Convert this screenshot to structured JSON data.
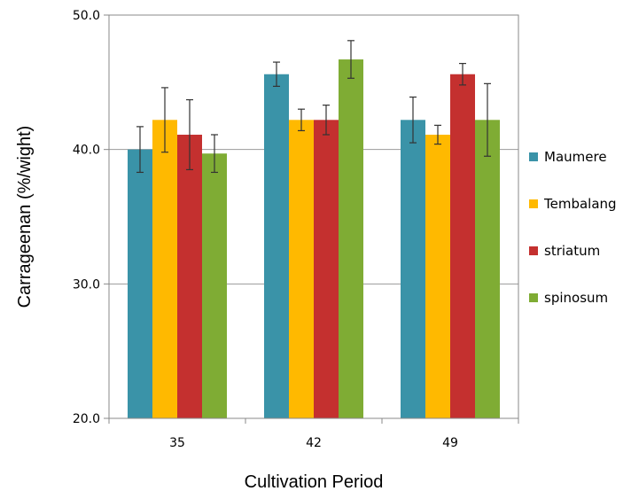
{
  "chart_data": {
    "type": "bar",
    "title": "",
    "xlabel": "Cultivation Period",
    "ylabel": "Carrageenan (%/wight)",
    "categories": [
      "35",
      "42",
      "49"
    ],
    "ylim": [
      20.0,
      50.0
    ],
    "yticks": [
      "20.0",
      "30.0",
      "40.0",
      "50.0"
    ],
    "grid": true,
    "legend_position": "right",
    "series": [
      {
        "name": "Maumere",
        "color": "#3a93a8",
        "values": [
          40.0,
          45.6,
          42.2
        ],
        "errors": [
          1.7,
          0.9,
          1.7
        ]
      },
      {
        "name": "Tembalang",
        "color": "#ffb900",
        "values": [
          42.2,
          42.2,
          41.1
        ],
        "errors": [
          2.4,
          0.8,
          0.7
        ]
      },
      {
        "name": "striatum",
        "color": "#c4302f",
        "values": [
          41.1,
          42.2,
          45.6
        ],
        "errors": [
          2.6,
          1.1,
          0.8
        ]
      },
      {
        "name": "spinosum",
        "color": "#7fac34",
        "values": [
          39.7,
          46.7,
          42.2
        ],
        "errors": [
          1.4,
          1.4,
          2.7
        ]
      }
    ]
  }
}
